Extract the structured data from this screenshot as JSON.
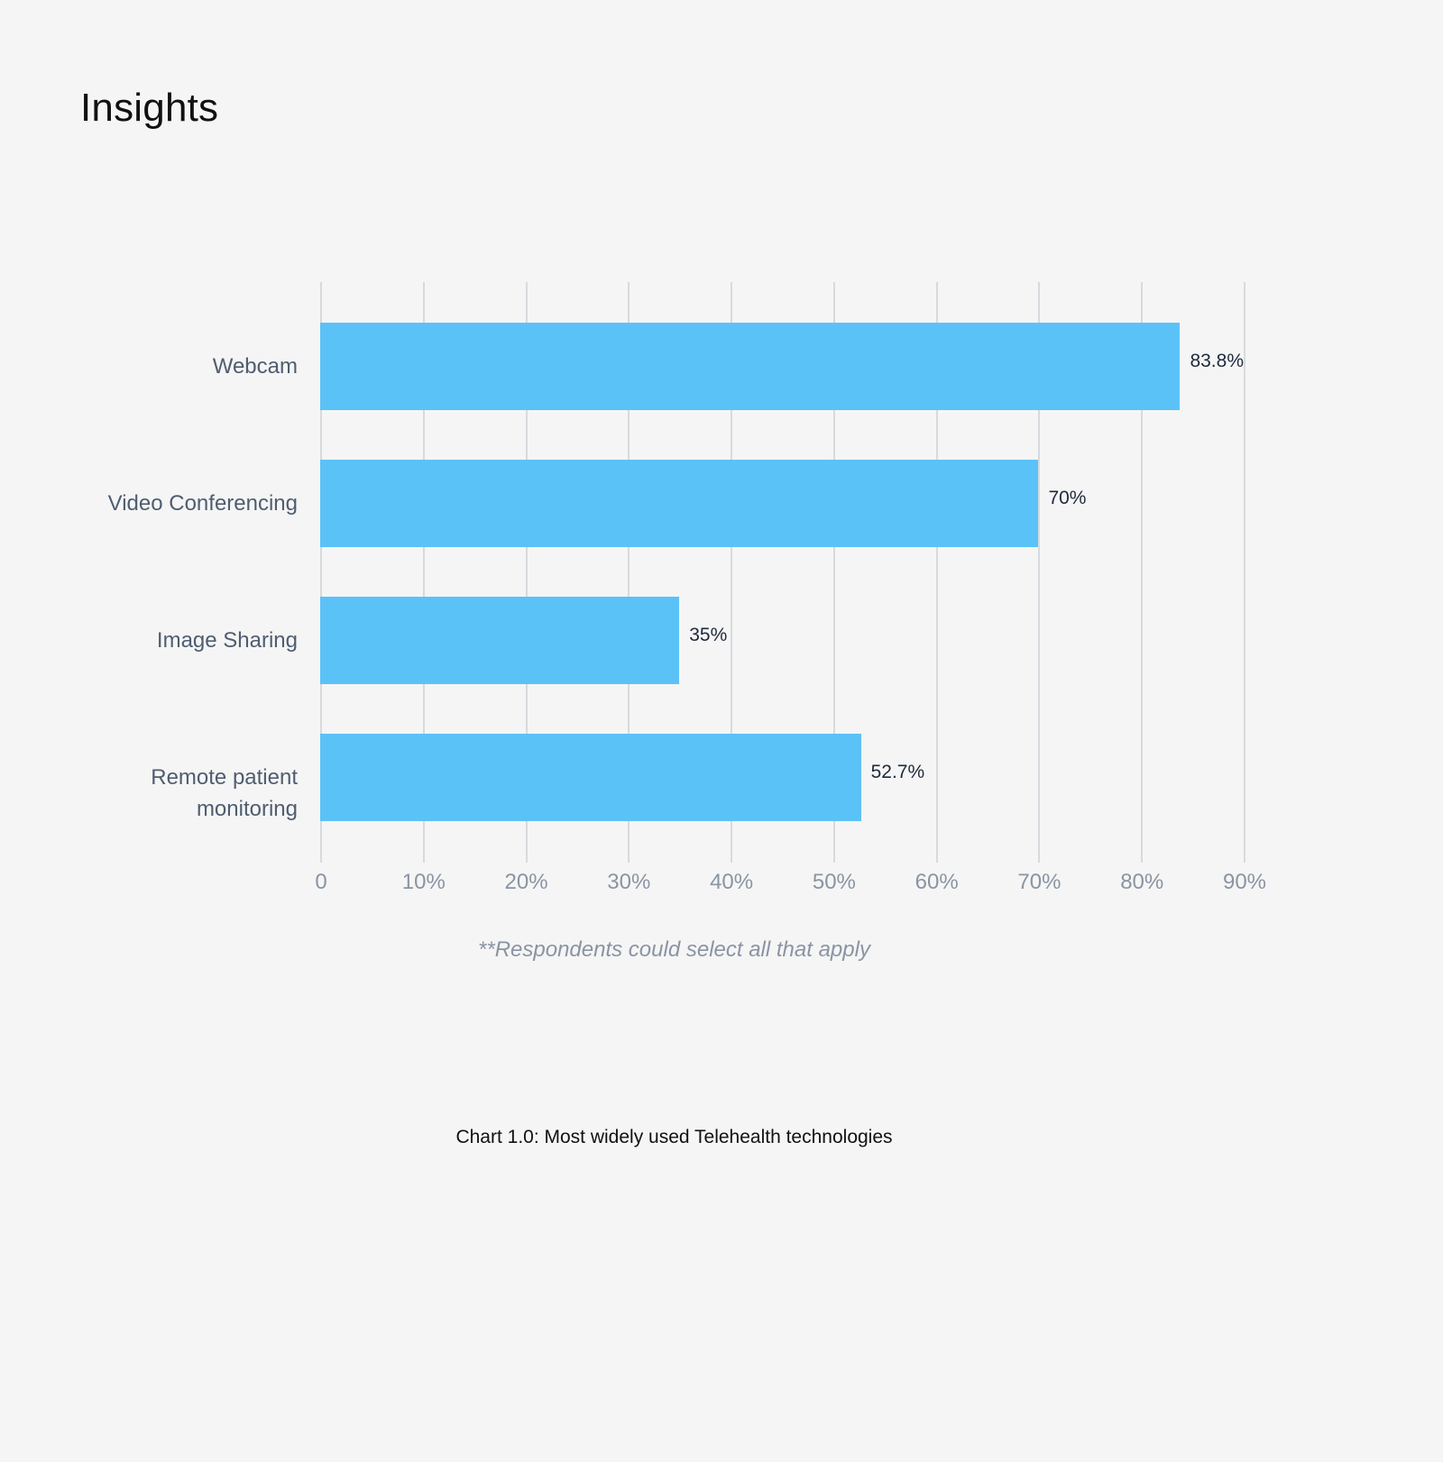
{
  "page": {
    "title": "Insights"
  },
  "chart_data": {
    "type": "bar",
    "orientation": "horizontal",
    "title": "Chart 1.0: Most widely used Telehealth technologies",
    "footnote": "**Respondents could select all that apply",
    "categories": [
      "Webcam",
      "Video Conferencing",
      "Image Sharing",
      "Remote patient\nmonitoring"
    ],
    "values": [
      83.8,
      70,
      35,
      52.7
    ],
    "value_labels": [
      "83.8%",
      "70%",
      "35%",
      "52.7%"
    ],
    "xlabel": "",
    "ylabel": "",
    "xlim": [
      0,
      90
    ],
    "x_ticks": [
      0,
      10,
      20,
      30,
      40,
      50,
      60,
      70,
      80,
      90
    ],
    "x_tick_labels": [
      "0",
      "10%",
      "20%",
      "30%",
      "40%",
      "50%",
      "60%",
      "70%",
      "80%",
      "90%"
    ],
    "grid": "vertical",
    "legend": null,
    "colors": {
      "bar": "#5bc2f7",
      "grid": "#d7dade",
      "tick_label": "#8a94a3",
      "category_label": "#4f5d70",
      "value_label": "#1e2a3b"
    }
  }
}
